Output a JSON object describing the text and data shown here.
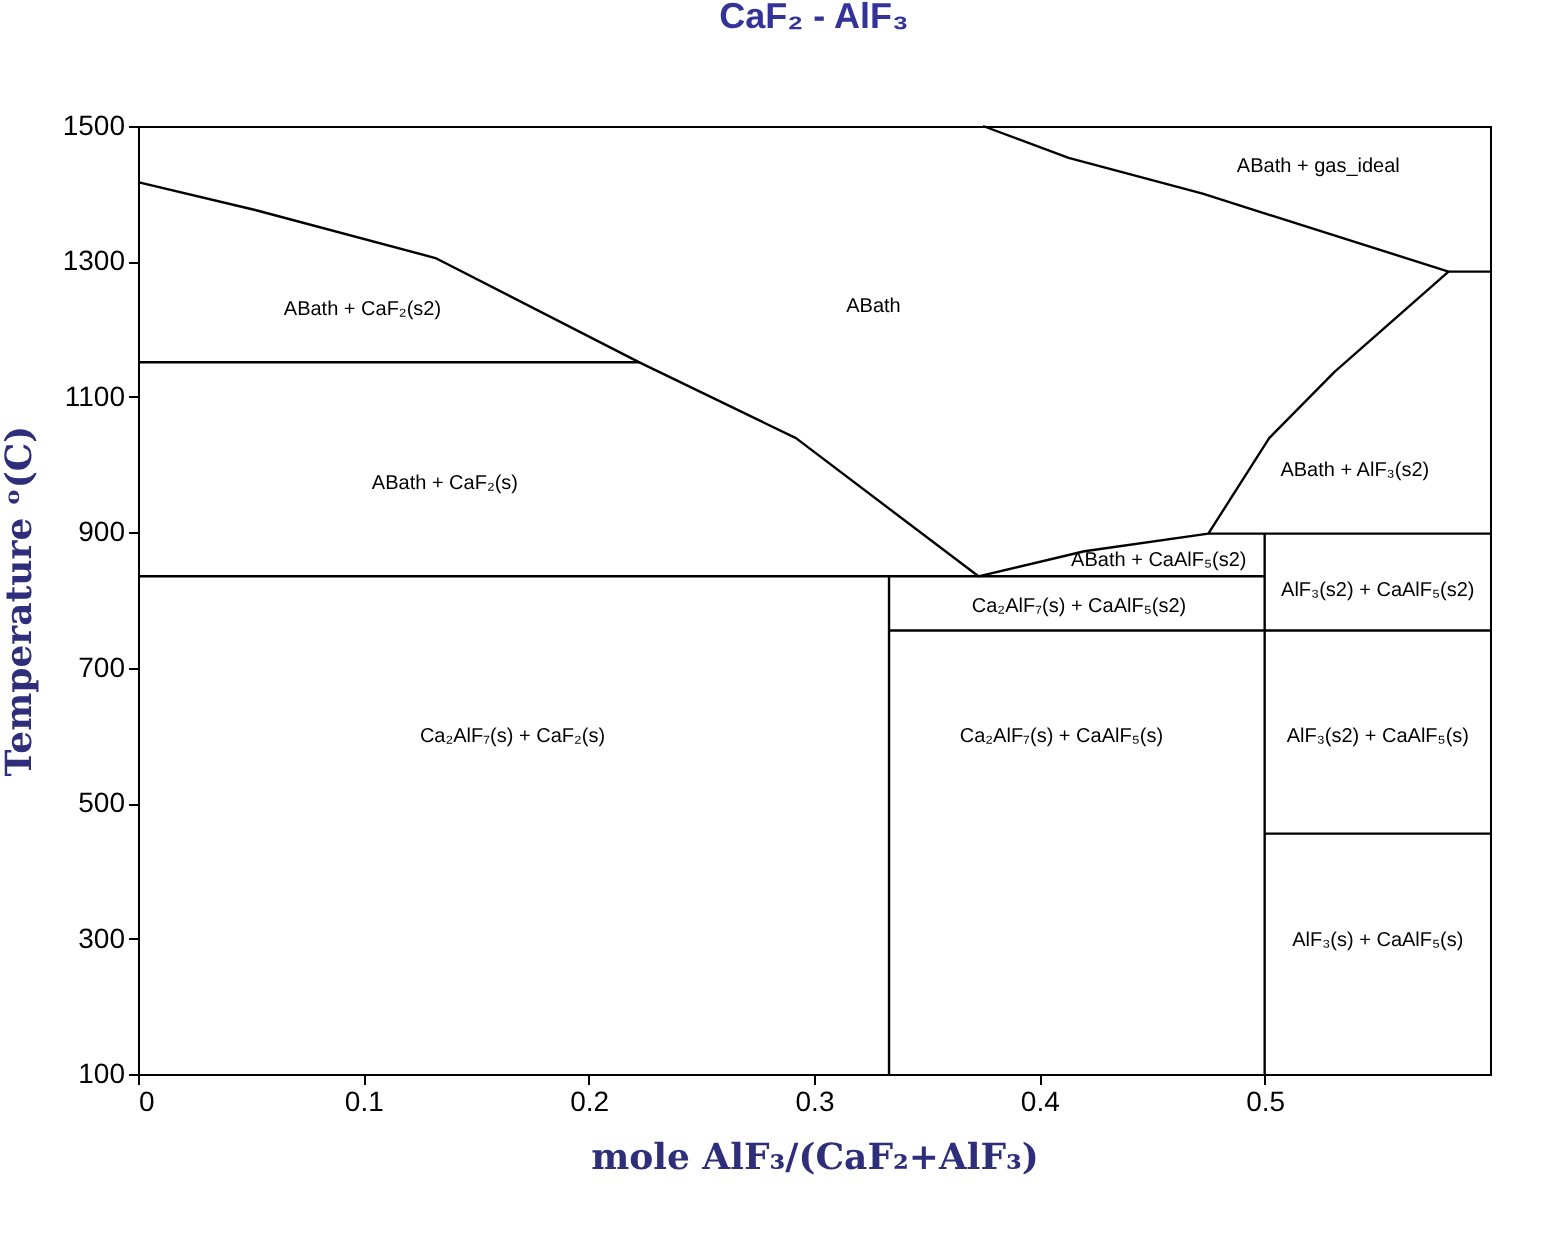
{
  "chart_data": {
    "type": "line",
    "title": "CaF₂ - AlF₃",
    "xlabel": "mole AlF₃/(CaF₂+AlF₃)",
    "ylabel": "Temperature ᵒ(C)",
    "xlim": [
      0,
      0.6
    ],
    "xticks": [
      0,
      0.1,
      0.2,
      0.3,
      0.4,
      0.5
    ],
    "ylim": [
      100,
      1500
    ],
    "yticks": [
      100,
      300,
      500,
      700,
      900,
      1100,
      1300,
      1500
    ],
    "grid": false,
    "marker": "none",
    "line_style": "solid",
    "series": [
      {
        "color": "#000000",
        "x": [
          0,
          0.052,
          0.132,
          0.2225,
          0.292,
          0.373,
          0.42,
          0.475,
          0.502,
          0.531,
          0.5816,
          0.4725,
          0.413,
          0.375
        ],
        "values": [
          1417,
          1376,
          1305,
          1151,
          1039,
          835,
          872,
          898,
          1039,
          1137,
          1285,
          1400,
          1453,
          1500
        ]
      },
      {
        "color": "#000000",
        "x": [
          0.5816,
          0.6
        ],
        "values": [
          1285,
          1285
        ]
      },
      {
        "color": "#000000",
        "x": [
          0,
          0.2225
        ],
        "values": [
          1151,
          1151
        ]
      },
      {
        "color": "#000000",
        "x": [
          0,
          0.5
        ],
        "values": [
          835,
          835
        ]
      },
      {
        "color": "#000000",
        "x": [
          0.475,
          0.6
        ],
        "values": [
          898,
          898
        ]
      },
      {
        "color": "#000000",
        "x": [
          0.3333,
          0.6
        ],
        "values": [
          755,
          755
        ]
      },
      {
        "color": "#000000",
        "x": [
          0.5,
          0.6
        ],
        "values": [
          455,
          455
        ]
      },
      {
        "color": "#000000",
        "x": [
          0.3333,
          0.3333
        ],
        "values": [
          100,
          835
        ]
      },
      {
        "color": "#000000",
        "x": [
          0.5,
          0.5
        ],
        "values": [
          100,
          898
        ]
      }
    ],
    "annotations": [
      "ABath + CaF₂(s2)",
      "ABath + CaF₂(s)",
      "ABath",
      "ABath + gas_ideal",
      "ABath + AlF₃(s2)",
      "ABath + CaAlF₅(s2)",
      "Ca₂AlF₇(s) + CaAlF₅(s2)",
      "AlF₃(s2) + CaAlF₅(s2)",
      "Ca₂AlF₇(s) + CaF₂(s)",
      "Ca₂AlF₇(s) + CaAlF₅(s)",
      "AlF₃(s2) + CaAlF₅(s)",
      "AlF₃(s) + CaAlF₅(s)"
    ]
  }
}
